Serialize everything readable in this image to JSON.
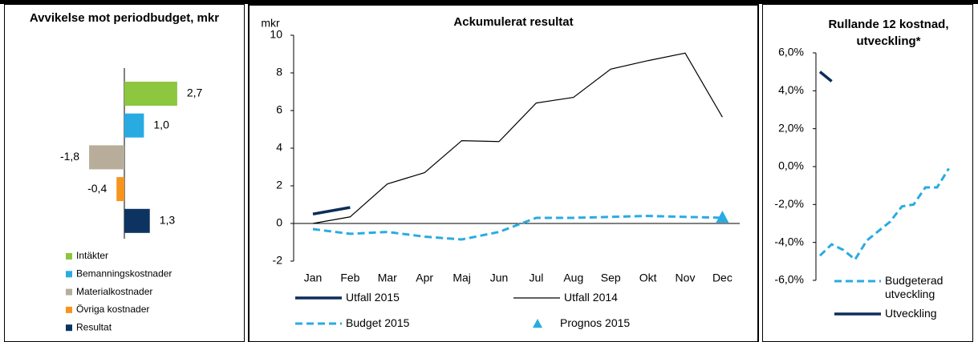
{
  "chart_data": [
    {
      "type": "hbar",
      "title": "Avvikelse mot periodbudget, mkr",
      "categories": [
        "Intäkter",
        "Bemanningskostnader",
        "Materialkostnader",
        "Övriga kostnader",
        "Resultat"
      ],
      "values": [
        2.7,
        1.0,
        -1.8,
        -0.4,
        1.3
      ],
      "value_labels": [
        "2,7",
        "1,0",
        "-1,8",
        "-0,4",
        "1,3"
      ],
      "colors": [
        "#8dc63f",
        "#29abe2",
        "#b7ad9a",
        "#f7941d",
        "#0d3461"
      ],
      "xlim": [
        -5,
        5
      ],
      "legend": "bottom"
    },
    {
      "type": "line",
      "title": "Ackumulerat resultat",
      "y_label": "mkr",
      "categories": [
        "Jan",
        "Feb",
        "Mar",
        "Apr",
        "Maj",
        "Jun",
        "Jul",
        "Aug",
        "Sep",
        "Okt",
        "Nov",
        "Dec"
      ],
      "ylim": [
        -2,
        10
      ],
      "yticks": [
        -2,
        0,
        2,
        4,
        6,
        8,
        10
      ],
      "legend": "bottom",
      "series": [
        {
          "name": "Utfall 2015",
          "color": "#0d2d5a",
          "style": "thick",
          "values": [
            0.5,
            0.85,
            null,
            null,
            null,
            null,
            null,
            null,
            null,
            null,
            null,
            null
          ]
        },
        {
          "name": "Utfall 2014",
          "color": "#000000",
          "style": "thin",
          "values": [
            0,
            0.35,
            2.1,
            2.7,
            4.4,
            4.35,
            6.4,
            6.7,
            8.2,
            8.65,
            9.05,
            5.65
          ]
        },
        {
          "name": "Budget 2015",
          "color": "#29abe2",
          "style": "dashed",
          "values": [
            -0.3,
            -0.55,
            -0.45,
            -0.7,
            -0.85,
            -0.45,
            0.3,
            0.3,
            0.35,
            0.4,
            0.35,
            0.3
          ]
        },
        {
          "name": "Prognos 2015",
          "color": "#29abe2",
          "style": "marker",
          "values": [
            null,
            null,
            null,
            null,
            null,
            null,
            null,
            null,
            null,
            null,
            null,
            0.3
          ]
        }
      ]
    },
    {
      "type": "line",
      "title": "Rullande 12 kostnad, utveckling*",
      "categories": [
        null,
        null,
        null,
        null,
        null,
        null,
        null,
        null,
        null,
        null,
        null,
        null
      ],
      "ylim": [
        -6,
        6
      ],
      "yticks": [
        {
          "value": -6,
          "label": "-6,0%"
        },
        {
          "value": -4,
          "label": "-4,0%"
        },
        {
          "value": -2,
          "label": "-2,0%"
        },
        {
          "value": 0,
          "label": "0,0%"
        },
        {
          "value": 2,
          "label": "2,0%"
        },
        {
          "value": 4,
          "label": "4,0%"
        },
        {
          "value": 6,
          "label": "6,0%"
        }
      ],
      "legend": "bottom",
      "series": [
        {
          "name": "Budgeterad utveckling",
          "color": "#29abe2",
          "style": "dashed",
          "values": [
            -4.7,
            -4.1,
            -4.4,
            -4.9,
            -3.9,
            -3.4,
            -2.9,
            -2.1,
            -2.0,
            -1.1,
            -1.1,
            -0.1
          ]
        },
        {
          "name": "Utveckling",
          "color": "#0d2d5a",
          "style": "thick",
          "values": [
            5.0,
            4.5,
            null,
            null,
            null,
            null,
            null,
            null,
            null,
            null,
            null,
            null
          ]
        }
      ]
    }
  ]
}
